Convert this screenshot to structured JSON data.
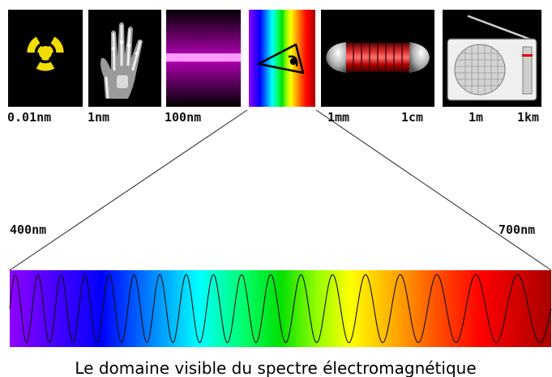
{
  "wavelength_labels": [
    "0.01nm",
    "1nm",
    "100nm",
    "1mm",
    "1cm",
    "1m",
    "1km"
  ],
  "visible_range": {
    "start_label": "400nm",
    "end_label": "700nm"
  },
  "caption": "Le domaine visible du spectre électromagnétique",
  "panels": [
    {
      "name": "radiation",
      "icon": "radiation-trefoil-icon"
    },
    {
      "name": "x-ray",
      "icon": "xray-hand-icon"
    },
    {
      "name": "ultraviolet",
      "icon": "uv-lamp-icon"
    },
    {
      "name": "visible",
      "icon": "eye-icon"
    },
    {
      "name": "microwave",
      "icon": "magnetron-icon"
    },
    {
      "name": "radio",
      "icon": "radio-icon"
    }
  ],
  "colors": {
    "trefoil": "#f2dd00",
    "spectrum": [
      "#8800ff",
      "#4400ff",
      "#0000ff",
      "#0088ff",
      "#00ffff",
      "#00ff66",
      "#00dd00",
      "#88ff00",
      "#ffff00",
      "#ffaa00",
      "#ff5500",
      "#ff0000",
      "#e00000",
      "#b00000"
    ]
  }
}
